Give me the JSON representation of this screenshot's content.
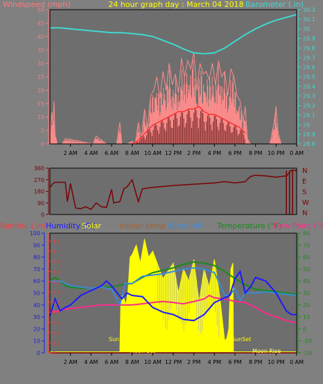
{
  "colors": {
    "background": "#808080",
    "plot_bg": "#6e6e6e",
    "frame": "#000000",
    "wind_left": "#ff7c7c",
    "wind_avg": "#ff3030",
    "wind_gust": "#ff8c8c",
    "wind_dark": "#7a2a2a",
    "barometer": "#40d8d0",
    "direction": "#7a0000",
    "rain": "#ff3a3a",
    "humidity": "#1a1aff",
    "solar": "#ffff00",
    "indoor": "#a06030",
    "windchill": "#3a8ad8",
    "temperature": "#1a8a1a",
    "dewpoint": "#ff2a8a",
    "moonrise": "#ffff66",
    "title": "#ffff00"
  },
  "chart_data": [
    {
      "type": "line",
      "title": "24 hour graph day : March 04 2018",
      "ylabel": "Windspeed (mph)",
      "y2label": "Barometer (.in)",
      "ylim": [
        0,
        50
      ],
      "y_ticks": [
        "0",
        "5",
        "10",
        "15",
        "20",
        "25",
        "30",
        "35",
        "40",
        "45",
        "50"
      ],
      "y2lim": [
        28.8,
        30.2
      ],
      "y2_ticks": [
        "28.8",
        "28.9",
        "29",
        "29.1",
        "29.2",
        "29.3",
        "29.4",
        "29.5",
        "29.6",
        "29.7",
        "29.8",
        "29.9",
        "30",
        "30.1",
        "30.2"
      ],
      "x_ticks": [
        "2 AM",
        "4 AM",
        "6 AM",
        "8 AM",
        "10 AM",
        "12 PM",
        "2 PM",
        "4 PM",
        "6 PM",
        "8 PM",
        "10 PM",
        "0 AM"
      ],
      "xlim": [
        0,
        24
      ],
      "grid": false,
      "series": [
        {
          "name": "Windspeed (mph)",
          "axis": "left",
          "x": [
            0.0,
            0.2,
            0.3,
            0.4,
            0.5,
            0.6,
            0.7,
            0.9,
            1.2,
            1.5,
            4.2,
            4.5,
            5.5,
            6.5,
            6.8,
            7.0,
            7.5,
            8.0,
            8.3,
            8.6,
            8.9,
            9.2,
            9.5,
            9.8,
            10.1,
            10.4,
            10.7,
            11.0,
            11.3,
            11.6,
            11.9,
            12.2,
            12.5,
            12.8,
            13.1,
            13.4,
            13.7,
            14.0,
            14.3,
            14.6,
            14.9,
            15.2,
            15.5,
            15.8,
            16.1,
            16.4,
            16.7,
            17.0,
            17.3,
            17.6,
            17.9,
            18.2,
            18.5,
            18.8,
            19.0,
            19.2,
            19.5,
            20.0,
            20.5,
            21.0,
            21.4,
            21.8,
            22.0,
            22.2,
            22.5,
            23.0,
            23.5,
            24.0
          ],
          "values": [
            2,
            12,
            5,
            16,
            3,
            2,
            0,
            0,
            0,
            2,
            0,
            3,
            0,
            0,
            8,
            0,
            0,
            1,
            0,
            8,
            2,
            13,
            6,
            18,
            20,
            25,
            17,
            27,
            20,
            30,
            22,
            26,
            19,
            32,
            25,
            31,
            28,
            34,
            20,
            30,
            26,
            27,
            24,
            30,
            22,
            31,
            25,
            27,
            18,
            28,
            25,
            18,
            16,
            8,
            14,
            2,
            0,
            0,
            0,
            0,
            0,
            8,
            14,
            4,
            0,
            0,
            0,
            0
          ]
        },
        {
          "name": "Wind average",
          "axis": "left",
          "x": [
            8.0,
            8.5,
            9.0,
            9.5,
            10.0,
            10.5,
            11.0,
            11.5,
            12.0,
            12.5,
            13.0,
            13.5,
            14.0,
            14.5,
            15.0,
            15.5,
            16.0,
            16.5,
            17.0,
            17.5,
            18.0,
            18.5,
            19.0
          ],
          "values": [
            0,
            1,
            3,
            5,
            7,
            8,
            9,
            10,
            11,
            12,
            12,
            13,
            13,
            14,
            12,
            11,
            11,
            10,
            9,
            8,
            7,
            6,
            4
          ]
        },
        {
          "name": "Barometer (.in)",
          "axis": "right",
          "x": [
            0,
            1,
            2,
            3,
            4,
            5,
            6,
            7,
            8,
            9,
            10,
            11,
            12,
            13,
            14,
            15,
            16,
            17,
            18,
            19,
            20,
            21,
            22,
            23,
            24
          ],
          "values": [
            30.01,
            30.01,
            30.0,
            29.99,
            29.98,
            29.97,
            29.96,
            29.96,
            29.95,
            29.94,
            29.92,
            29.88,
            29.84,
            29.79,
            29.75,
            29.74,
            29.75,
            29.8,
            29.87,
            29.94,
            30.0,
            30.05,
            30.09,
            30.12,
            30.15
          ]
        }
      ]
    },
    {
      "type": "line",
      "ylim": [
        0,
        360
      ],
      "y_ticks": [
        "0",
        "90",
        "180",
        "270",
        "360"
      ],
      "y2_ticks": [
        "N",
        "W",
        "S",
        "E",
        "N"
      ],
      "xlim": [
        0,
        24
      ],
      "series": [
        {
          "name": "Wind direction",
          "x": [
            0.0,
            0.3,
            0.5,
            1.0,
            1.5,
            1.7,
            2.0,
            2.5,
            3.0,
            3.5,
            4.0,
            4.5,
            5.0,
            5.5,
            6.0,
            6.2,
            6.8,
            7.2,
            7.5,
            8.0,
            8.6,
            9.0,
            10.0,
            12.0,
            14.0,
            16.0,
            17.0,
            18.0,
            18.5,
            19.0,
            19.5,
            20.0,
            21.0,
            22.0,
            23.0,
            23.5,
            24.0
          ],
          "values": [
            210,
            240,
            250,
            250,
            250,
            100,
            240,
            50,
            45,
            60,
            40,
            90,
            60,
            55,
            195,
            90,
            100,
            200,
            215,
            270,
            100,
            200,
            210,
            225,
            235,
            245,
            255,
            245,
            250,
            255,
            295,
            305,
            300,
            290,
            300,
            345,
            340
          ]
        }
      ]
    },
    {
      "type": "line",
      "labels": [
        "Rainfall (.in)",
        "Humidity (%)",
        "Solar",
        "Indoor temp",
        "Windchill",
        "Temperature (°F)",
        "Dew Point (°F)"
      ],
      "yticks_rain": [
        "0",
        "0.1",
        "0.2",
        "0.3",
        "0.4",
        "0.5",
        "0.6",
        "0.7",
        "0.8",
        "0.9",
        "1",
        "1.1"
      ],
      "yticks_humidity": [
        "0",
        "10",
        "20",
        "30",
        "40",
        "50",
        "60",
        "70",
        "80",
        "90",
        "100"
      ],
      "yticks_temp": [
        "-20",
        "-10",
        "0",
        "10",
        "20",
        "30",
        "40",
        "50",
        "60",
        "70",
        "80"
      ],
      "ylim_temp": [
        -20,
        80
      ],
      "ylim_humidity": [
        0,
        100
      ],
      "x_ticks": [
        "2 AM",
        "4 AM",
        "6 AM",
        "8 AM",
        "10 AM",
        "12 PM",
        "2 PM",
        "4 PM",
        "6 PM",
        "8 PM",
        "10 PM",
        "0 AM"
      ],
      "xlim": [
        0,
        24
      ],
      "annotations": {
        "sunrise": "SunRise",
        "sunset": "SunSet",
        "moonset": "Moon Set",
        "moonrise": "Moon Rise"
      },
      "series": [
        {
          "name": "Temperature (°F)",
          "x": [
            0,
            0.5,
            1,
            1.5,
            2,
            3,
            4,
            5,
            6,
            7,
            8,
            9,
            10,
            11,
            12,
            13,
            14,
            15,
            16,
            17,
            18,
            19,
            20,
            21,
            22,
            23,
            24
          ],
          "values": [
            40,
            43,
            40,
            36,
            35,
            34,
            34,
            35,
            35,
            37,
            38,
            43,
            47,
            49,
            51,
            54,
            56,
            55,
            53,
            48,
            42,
            37,
            33,
            32,
            31,
            30,
            29
          ]
        },
        {
          "name": "Windchill",
          "x": [
            0,
            1,
            2,
            3,
            4,
            5,
            6,
            6.8,
            7.3,
            8,
            9,
            10,
            11,
            12,
            13,
            14,
            15,
            16,
            16.5,
            17,
            17.5,
            18,
            18.5,
            19,
            20,
            21,
            22,
            23,
            24
          ],
          "values": [
            40,
            40,
            36,
            35,
            34,
            35,
            33,
            20,
            38,
            38,
            44,
            45,
            46,
            48,
            50,
            51,
            50,
            47,
            38,
            28,
            28,
            34,
            24,
            30,
            30,
            31,
            30,
            29,
            28
          ]
        },
        {
          "name": "Dew Point (°F)",
          "x": [
            0,
            0.5,
            1,
            2,
            3,
            4,
            5,
            6,
            7,
            8,
            9,
            10,
            11,
            12,
            13,
            14,
            15,
            15.5,
            16,
            17,
            18,
            19,
            20,
            21,
            22,
            23,
            24
          ],
          "values": [
            16,
            14,
            16,
            17,
            18,
            19,
            20,
            20,
            20,
            20,
            21,
            22,
            23,
            22,
            21,
            23,
            25,
            28,
            26,
            25,
            23,
            22,
            18,
            13,
            10,
            7,
            5
          ]
        },
        {
          "name": "Humidity (%)",
          "x": [
            0,
            0.5,
            1,
            1.5,
            2,
            2.5,
            3,
            4,
            5,
            5.5,
            6,
            7,
            7.5,
            8,
            9,
            10,
            11,
            12,
            13,
            14,
            15,
            16,
            17,
            17.5,
            18,
            18.5,
            19,
            19.5,
            20,
            21,
            22,
            23,
            23.5,
            24
          ],
          "values": [
            31,
            45,
            35,
            38,
            40,
            44,
            48,
            52,
            56,
            60,
            56,
            45,
            50,
            48,
            47,
            38,
            34,
            32,
            28,
            27,
            32,
            42,
            46,
            48,
            62,
            68,
            50,
            55,
            63,
            60,
            50,
            35,
            32,
            32
          ]
        },
        {
          "name": "Solar",
          "x": [
            0,
            6.8,
            6.9,
            7.1,
            7.4,
            7.6,
            7.8,
            8.0,
            8.4,
            8.8,
            9.2,
            9.6,
            10,
            11,
            12,
            12.5,
            13,
            13.5,
            14,
            14.5,
            15,
            15.5,
            16,
            16.5,
            17,
            17.2,
            17.4,
            17.6,
            17.8,
            17.85,
            24
          ],
          "values": [
            0,
            0,
            45,
            48,
            40,
            52,
            80,
            82,
            90,
            75,
            95,
            80,
            85,
            62,
            75,
            50,
            70,
            60,
            78,
            42,
            70,
            55,
            78,
            48,
            10,
            12,
            20,
            70,
            75,
            0,
            0
          ]
        },
        {
          "name": "Rainfall (.in)",
          "x": [
            0,
            24
          ],
          "values": [
            0,
            0
          ]
        }
      ]
    }
  ]
}
